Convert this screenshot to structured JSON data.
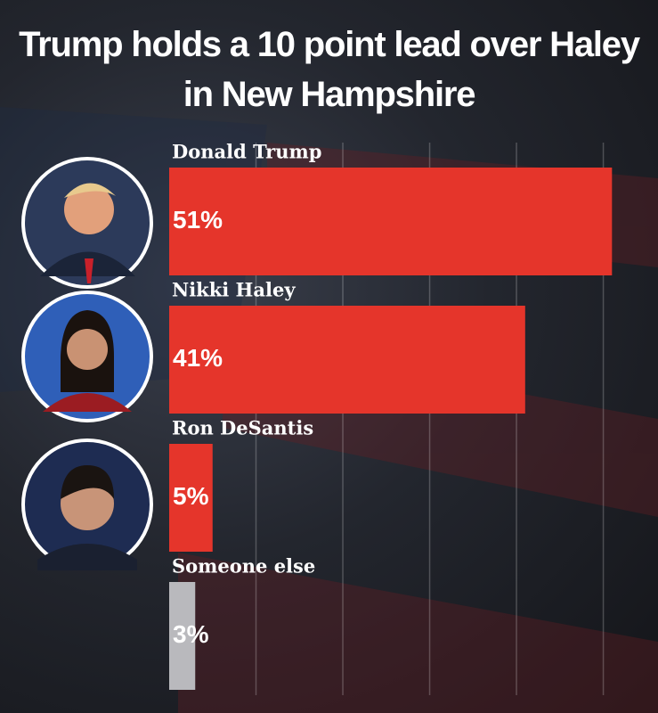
{
  "chart_data": {
    "type": "bar",
    "orientation": "horizontal",
    "title": "Trump holds a 10 point lead over Haley in New Hampshire",
    "categories": [
      "Donald Trump",
      "Nikki Haley",
      "Ron DeSantis",
      "Someone else"
    ],
    "values": [
      51,
      41,
      5,
      3
    ],
    "value_labels": [
      "51%",
      "41%",
      "5%",
      "3%"
    ],
    "colors": [
      "#e5352b",
      "#e5352b",
      "#e5352b",
      "#b9b9bd"
    ],
    "xlim": [
      0,
      56.3
    ],
    "xticks": [
      10,
      20,
      30,
      40,
      50
    ],
    "grid": true
  }
}
